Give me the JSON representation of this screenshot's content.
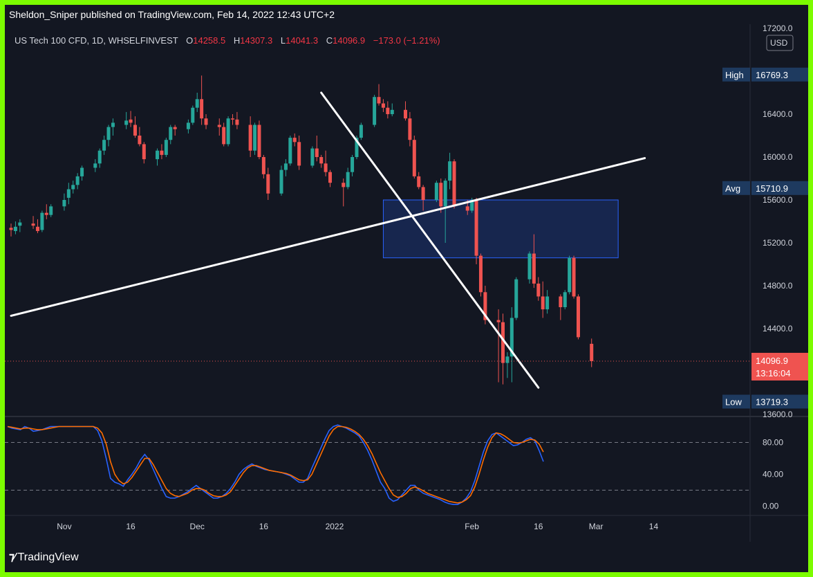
{
  "header": {
    "published_by": "Sheldon_Sniper published on TradingView.com, Feb 14, 2022 12:43 UTC+2"
  },
  "legend": {
    "symbol": "US Tech 100 CFD, 1D, WHSELFINVEST",
    "open_label": "O",
    "open": "14258.5",
    "high_label": "H",
    "high": "14307.3",
    "low_label": "L",
    "low": "14041.3",
    "close_label": "C",
    "close": "14096.9",
    "change": "−173.0 (−1.21%)"
  },
  "price_axis": {
    "currency": "USD",
    "ticks": [
      "17200.0",
      "16400.0",
      "16000.0",
      "15600.0",
      "15200.0",
      "14800.0",
      "14400.0",
      "13600.0"
    ],
    "high_label": "High",
    "high_value": "16769.3",
    "avg_label": "Avg",
    "avg_value": "15710.9",
    "current_value": "14096.9",
    "countdown": "13:16:04",
    "low_label": "Low",
    "low_value": "13719.3"
  },
  "osc_axis": {
    "ticks": [
      "80.00",
      "40.00",
      "0.00"
    ]
  },
  "time_axis": {
    "ticks": [
      "Nov",
      "16",
      "Dec",
      "16",
      "2022",
      "Feb",
      "16",
      "Mar",
      "14"
    ]
  },
  "footer": {
    "brand": "TradingView"
  },
  "colors": {
    "up": "#26a69a",
    "down": "#ef5350",
    "k_line": "#2962ff",
    "d_line": "#ff6d00",
    "box": "#2962ff",
    "trendline": "#ffffff"
  },
  "chart_data": [
    {
      "type": "candlestick",
      "title": "US Tech 100 CFD, 1D, WHSELFINVEST",
      "ylim": [
        13600,
        17200
      ],
      "x_ticks": [
        "Nov",
        "16",
        "Dec",
        "16",
        "2022",
        "Feb",
        "16",
        "Mar",
        "14"
      ],
      "start_date": "2021-10-20",
      "candles": [
        [
          15340,
          15380,
          15260,
          15320
        ],
        [
          15310,
          15400,
          15280,
          15350
        ],
        [
          15360,
          15420,
          15300,
          15390
        ],
        [
          15380,
          15450,
          15330,
          15360
        ],
        [
          15350,
          15420,
          15290,
          15310
        ],
        [
          15320,
          15500,
          15300,
          15480
        ],
        [
          15480,
          15560,
          15420,
          15460
        ],
        [
          15460,
          15560,
          15440,
          15540
        ],
        [
          15540,
          15660,
          15500,
          15600
        ],
        [
          15620,
          15760,
          15560,
          15700
        ],
        [
          15700,
          15780,
          15660,
          15740
        ],
        [
          15740,
          15850,
          15700,
          15820
        ],
        [
          15820,
          15920,
          15780,
          15900
        ],
        [
          15900,
          15980,
          15860,
          15940
        ],
        [
          15940,
          16080,
          15900,
          16060
        ],
        [
          16060,
          16200,
          16020,
          16160
        ],
        [
          16160,
          16300,
          16100,
          16280
        ],
        [
          16280,
          16360,
          16200,
          16320
        ],
        [
          16300,
          16420,
          16260,
          16340
        ],
        [
          16350,
          16430,
          16280,
          16320
        ],
        [
          16300,
          16380,
          16180,
          16200
        ],
        [
          16200,
          16280,
          16100,
          16120
        ],
        [
          16120,
          16140,
          15940,
          15980
        ],
        [
          15980,
          16080,
          15920,
          16060
        ],
        [
          16060,
          16120,
          15980,
          16020
        ],
        [
          16020,
          16180,
          16000,
          16160
        ],
        [
          16160,
          16300,
          16120,
          16280
        ],
        [
          16280,
          16300,
          16200,
          16260
        ],
        [
          16260,
          16350,
          16220,
          16320
        ],
        [
          16320,
          16480,
          16300,
          16460
        ],
        [
          16460,
          16600,
          16420,
          16540
        ],
        [
          16540,
          16760,
          16300,
          16360
        ],
        [
          16360,
          16400,
          16260,
          16300
        ],
        [
          16300,
          16360,
          16200,
          16280
        ],
        [
          16280,
          16320,
          16100,
          16120
        ],
        [
          16120,
          16380,
          16100,
          16360
        ],
        [
          16360,
          16400,
          16300,
          16350
        ],
        [
          16350,
          16420,
          16260,
          16300
        ],
        [
          16300,
          16380,
          16000,
          16060
        ],
        [
          16060,
          16320,
          16020,
          16300
        ],
        [
          16300,
          16340,
          15980,
          16000
        ],
        [
          16000,
          16020,
          15800,
          15840
        ],
        [
          15840,
          15900,
          15600,
          15660
        ],
        [
          15660,
          15920,
          15640,
          15880
        ],
        [
          15880,
          15980,
          15820,
          15940
        ],
        [
          15940,
          16200,
          15920,
          16180
        ],
        [
          16180,
          16220,
          16100,
          16140
        ],
        [
          16140,
          16200,
          15880,
          15920
        ],
        [
          15920,
          16100,
          15900,
          16080
        ],
        [
          16080,
          16200,
          15960,
          16000
        ],
        [
          16000,
          16020,
          15900,
          15940
        ],
        [
          15940,
          16060,
          15820,
          15860
        ],
        [
          15860,
          15880,
          15720,
          15760
        ],
        [
          15760,
          15800,
          15540,
          15720
        ],
        [
          15720,
          15900,
          15700,
          15860
        ],
        [
          15860,
          16020,
          15820,
          16000
        ],
        [
          16000,
          16200,
          15980,
          16180
        ],
        [
          16180,
          16320,
          16160,
          16300
        ],
        [
          16300,
          16580,
          16280,
          16560
        ],
        [
          16560,
          16680,
          16480,
          16500
        ],
        [
          16500,
          16540,
          16420,
          16460
        ],
        [
          16460,
          16520,
          16360,
          16400
        ],
        [
          16400,
          16500,
          16380,
          16440
        ],
        [
          16440,
          16520,
          16340,
          16360
        ],
        [
          16360,
          16420,
          16100,
          16160
        ],
        [
          16160,
          16200,
          15800,
          15820
        ],
        [
          15820,
          15860,
          15700,
          15720
        ],
        [
          15720,
          15740,
          15500,
          15600
        ],
        [
          15600,
          15780,
          15580,
          15760
        ],
        [
          15760,
          15800,
          15480,
          15540
        ],
        [
          15540,
          15800,
          15200,
          15780
        ],
        [
          15780,
          16040,
          15700,
          15960
        ],
        [
          15960,
          15980,
          15520,
          15540
        ],
        [
          15540,
          15600,
          15460,
          15500
        ],
        [
          15500,
          15620,
          15480,
          15600
        ],
        [
          15600,
          15620,
          15000,
          15080
        ],
        [
          15080,
          15100,
          14700,
          14740
        ],
        [
          14740,
          14800,
          14440,
          14480
        ],
        [
          14480,
          14580,
          13900,
          14460
        ],
        [
          14460,
          14540,
          13880,
          14080
        ],
        [
          14080,
          14180,
          13940,
          14140
        ],
        [
          14140,
          14600,
          13900,
          14500
        ],
        [
          14500,
          14880,
          14480,
          14860
        ],
        [
          14860,
          15120,
          14820,
          15100
        ],
        [
          15100,
          15280,
          14780,
          14820
        ],
        [
          14820,
          14880,
          14660,
          14700
        ],
        [
          14700,
          14840,
          14500,
          14580
        ],
        [
          14580,
          14760,
          14540,
          14700
        ],
        [
          14700,
          14720,
          14480,
          14600
        ],
        [
          14600,
          14760,
          14580,
          14740
        ],
        [
          14740,
          15080,
          14720,
          15060
        ],
        [
          15060,
          15080,
          14680,
          14700
        ],
        [
          14700,
          14720,
          14300,
          14320
        ],
        [
          14258.5,
          14307.3,
          14041.3,
          14096.9
        ]
      ],
      "overlays": {
        "rising_trendline": {
          "from": [
            "2021-10-20",
            14520
          ],
          "to": [
            "2022-03-12",
            15990
          ]
        },
        "falling_trendline": {
          "from": [
            "2021-12-29",
            16600
          ],
          "to": [
            "2022-02-16",
            13850
          ]
        },
        "supply_zone": {
          "x_from": "2022-01-12",
          "x_to": "2022-03-06",
          "y_from": 15060,
          "y_to": 15600
        },
        "last_price": 14096.9
      }
    },
    {
      "type": "line",
      "title": "Stochastic",
      "ylim": [
        -10,
        110
      ],
      "levels": [
        80,
        20
      ],
      "series": [
        {
          "values": [
            100,
            98,
            97,
            96,
            100,
            98,
            94,
            95,
            96,
            98,
            100,
            100,
            100,
            100,
            100,
            100,
            100,
            100,
            100,
            100,
            100,
            95,
            82,
            60,
            35,
            30,
            28,
            25,
            33,
            40,
            48,
            58,
            65,
            58,
            46,
            34,
            22,
            12,
            10,
            10,
            12,
            15,
            18,
            22,
            26,
            22,
            18,
            14,
            10,
            10,
            12,
            16,
            22,
            30,
            40,
            46,
            50,
            53,
            50,
            48,
            46,
            45,
            44,
            43,
            42,
            40,
            38,
            34,
            30,
            30,
            35,
            48,
            60,
            72,
            84,
            95,
            100,
            102,
            100,
            98,
            95,
            92,
            88,
            80,
            70,
            58,
            44,
            30,
            22,
            10,
            6,
            8,
            14,
            20,
            26,
            26,
            20,
            16,
            14,
            12,
            10,
            8,
            5,
            3,
            2,
            2,
            5,
            10,
            18,
            32,
            50,
            68,
            82,
            90,
            92,
            88,
            84,
            80,
            76,
            77,
            80,
            84,
            86,
            82,
            70,
            56
          ]
        },
        {
          "values": [
            100,
            99,
            98,
            97,
            98,
            98,
            97,
            96,
            96,
            97,
            98,
            99,
            100,
            100,
            100,
            100,
            100,
            100,
            100,
            100,
            100,
            98,
            92,
            78,
            56,
            40,
            32,
            28,
            30,
            36,
            44,
            52,
            60,
            60,
            52,
            42,
            32,
            22,
            16,
            13,
            12,
            14,
            16,
            20,
            22,
            22,
            20,
            16,
            13,
            12,
            12,
            14,
            18,
            26,
            34,
            42,
            48,
            51,
            51,
            49,
            47,
            45,
            44,
            43,
            42,
            41,
            39,
            36,
            33,
            32,
            33,
            40,
            52,
            64,
            76,
            88,
            96,
            100,
            100,
            99,
            97,
            94,
            90,
            84,
            76,
            66,
            54,
            42,
            32,
            22,
            14,
            11,
            12,
            16,
            22,
            24,
            22,
            19,
            16,
            14,
            12,
            10,
            8,
            6,
            5,
            4,
            5,
            8,
            13,
            24,
            40,
            58,
            74,
            86,
            92,
            91,
            88,
            84,
            80,
            79,
            80,
            82,
            84,
            83,
            78,
            68
          ]
        }
      ]
    }
  ]
}
